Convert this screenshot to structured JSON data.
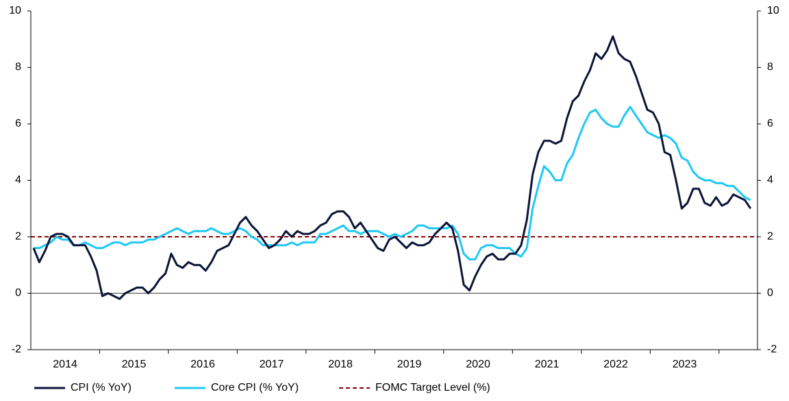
{
  "chart_data": {
    "type": "line",
    "categories": [
      null,
      null,
      null,
      null,
      null,
      null,
      "2014",
      null,
      null,
      null,
      null,
      null,
      null,
      null,
      null,
      null,
      null,
      null,
      "2015",
      null,
      null,
      null,
      null,
      null,
      null,
      null,
      null,
      null,
      null,
      null,
      "2016",
      null,
      null,
      null,
      null,
      null,
      null,
      null,
      null,
      null,
      null,
      null,
      "2017",
      null,
      null,
      null,
      null,
      null,
      null,
      null,
      null,
      null,
      null,
      null,
      "2018",
      null,
      null,
      null,
      null,
      null,
      null,
      null,
      null,
      null,
      null,
      null,
      "2019",
      null,
      null,
      null,
      null,
      null,
      null,
      null,
      null,
      null,
      null,
      null,
      "2020",
      null,
      null,
      null,
      null,
      null,
      null,
      null,
      null,
      null,
      null,
      null,
      "2021",
      null,
      null,
      null,
      null,
      null,
      null,
      null,
      null,
      null,
      null,
      null,
      "2022",
      null,
      null,
      null,
      null,
      null,
      null,
      null,
      null,
      null,
      null,
      null,
      "2023",
      null,
      null,
      null,
      null,
      null,
      null,
      null,
      null,
      null,
      null,
      null
    ],
    "series": [
      {
        "name": "CPI (% YoY)",
        "color": "#0b1538",
        "values": [
          1.6,
          1.1,
          1.5,
          2.0,
          2.1,
          2.1,
          2.0,
          1.7,
          1.7,
          1.7,
          1.3,
          0.8,
          -0.1,
          0.0,
          -0.1,
          -0.2,
          0.0,
          0.1,
          0.2,
          0.2,
          0.0,
          0.2,
          0.5,
          0.7,
          1.4,
          1.0,
          0.9,
          1.1,
          1.0,
          1.0,
          0.8,
          1.1,
          1.5,
          1.6,
          1.7,
          2.1,
          2.5,
          2.7,
          2.4,
          2.2,
          1.9,
          1.6,
          1.7,
          1.9,
          2.2,
          2.0,
          2.2,
          2.1,
          2.1,
          2.2,
          2.4,
          2.5,
          2.8,
          2.9,
          2.9,
          2.7,
          2.3,
          2.5,
          2.2,
          1.9,
          1.6,
          1.5,
          1.9,
          2.0,
          1.8,
          1.6,
          1.8,
          1.7,
          1.7,
          1.8,
          2.1,
          2.3,
          2.5,
          2.3,
          1.5,
          0.3,
          0.1,
          0.6,
          1.0,
          1.3,
          1.4,
          1.2,
          1.2,
          1.4,
          1.4,
          1.7,
          2.6,
          4.2,
          5.0,
          5.4,
          5.4,
          5.3,
          5.4,
          6.2,
          6.8,
          7.0,
          7.5,
          7.9,
          8.5,
          8.3,
          8.6,
          9.1,
          8.5,
          8.3,
          8.2,
          7.7,
          7.1,
          6.5,
          6.4,
          6.0,
          5.0,
          4.9,
          4.0,
          3.0,
          3.2,
          3.7,
          3.7,
          3.2,
          3.1,
          3.4,
          3.1,
          3.2,
          3.5,
          3.4,
          3.3,
          3.0
        ]
      },
      {
        "name": "Core CPI (% YoY)",
        "color": "#1ec8f5",
        "values": [
          1.6,
          1.6,
          1.7,
          1.8,
          2.0,
          1.9,
          1.9,
          1.7,
          1.7,
          1.8,
          1.7,
          1.6,
          1.6,
          1.7,
          1.8,
          1.8,
          1.7,
          1.8,
          1.8,
          1.8,
          1.9,
          1.9,
          2.0,
          2.1,
          2.2,
          2.3,
          2.2,
          2.1,
          2.2,
          2.2,
          2.2,
          2.3,
          2.2,
          2.1,
          2.1,
          2.2,
          2.3,
          2.2,
          2.0,
          1.9,
          1.7,
          1.7,
          1.7,
          1.7,
          1.7,
          1.8,
          1.7,
          1.8,
          1.8,
          1.8,
          2.1,
          2.1,
          2.2,
          2.3,
          2.4,
          2.2,
          2.2,
          2.1,
          2.2,
          2.2,
          2.2,
          2.1,
          2.0,
          2.1,
          2.0,
          2.1,
          2.2,
          2.4,
          2.4,
          2.3,
          2.3,
          2.3,
          2.3,
          2.4,
          2.1,
          1.4,
          1.2,
          1.2,
          1.6,
          1.7,
          1.7,
          1.6,
          1.6,
          1.6,
          1.4,
          1.3,
          1.6,
          3.0,
          3.8,
          4.5,
          4.3,
          4.0,
          4.0,
          4.6,
          4.9,
          5.5,
          6.0,
          6.4,
          6.5,
          6.2,
          6.0,
          5.9,
          5.9,
          6.3,
          6.6,
          6.3,
          6.0,
          5.7,
          5.6,
          5.5,
          5.6,
          5.5,
          5.3,
          4.8,
          4.7,
          4.3,
          4.1,
          4.0,
          4.0,
          3.9,
          3.9,
          3.8,
          3.8,
          3.6,
          3.4,
          3.3
        ]
      }
    ],
    "target_line": {
      "name": "FOMC Target Level (%)",
      "value": 2,
      "color": "#8b0000"
    },
    "ylim": [
      -2,
      10
    ],
    "yticks": [
      -2,
      0,
      2,
      4,
      6,
      8,
      10
    ],
    "y2lim": [
      -2,
      10
    ],
    "y2ticks": [
      -2,
      0,
      2,
      4,
      6,
      8,
      10
    ]
  }
}
